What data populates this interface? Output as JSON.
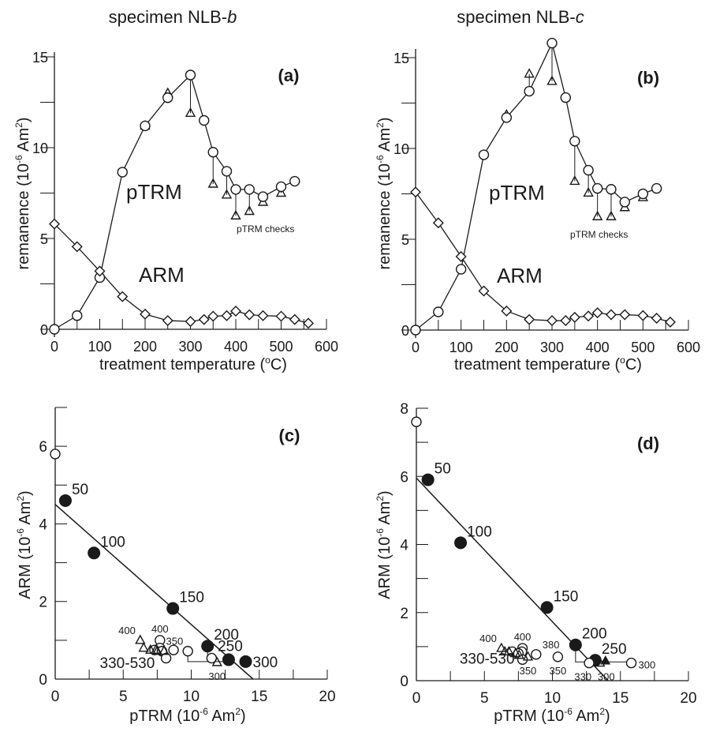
{
  "titles": [
    {
      "text": "specimen NLB-",
      "italic": "b"
    },
    {
      "text": "specimen NLB-",
      "italic": "c"
    }
  ],
  "colors": {
    "ink": "#1a1a1a",
    "background": "#ffffff"
  },
  "chart_data": [
    {
      "type": "line",
      "panel_label": "(a)",
      "xlabel": [
        "treatment temperature (",
        "o",
        "C)"
      ],
      "ylabel": [
        "remanence (10",
        "-6",
        " Am",
        "2",
        ")"
      ],
      "xlim": [
        0,
        600
      ],
      "ylim": [
        0,
        15
      ],
      "xticks": [
        0,
        100,
        200,
        300,
        400,
        500,
        600
      ],
      "yticks": [
        0,
        5,
        10,
        15
      ],
      "grid": false,
      "series": [
        {
          "name": "pTRM",
          "marker": "open-circle",
          "x": [
            0,
            50,
            100,
            150,
            200,
            250,
            300,
            330,
            350,
            380,
            400,
            430,
            460,
            500,
            530
          ],
          "y": [
            0,
            0.75,
            2.85,
            8.65,
            11.2,
            12.75,
            14.0,
            11.5,
            9.75,
            8.7,
            7.7,
            7.7,
            7.3,
            7.85,
            8.15
          ]
        },
        {
          "name": "ARM",
          "marker": "open-diamond",
          "x": [
            0,
            50,
            100,
            150,
            200,
            250,
            300,
            330,
            350,
            380,
            400,
            430,
            460,
            500,
            530,
            560
          ],
          "y": [
            5.8,
            4.55,
            3.2,
            1.8,
            0.83,
            0.48,
            0.43,
            0.54,
            0.72,
            0.75,
            1.0,
            0.8,
            0.75,
            0.72,
            0.54,
            0.33
          ]
        },
        {
          "name": "pTRM checks",
          "marker": "open-triangle",
          "x": [
            200,
            250,
            300,
            350,
            380,
            400,
            430,
            460,
            500
          ],
          "y": [
            11.2,
            13.0,
            11.9,
            8.0,
            7.4,
            6.25,
            6.5,
            7.0,
            7.5
          ]
        }
      ]
    },
    {
      "type": "line",
      "panel_label": "(b)",
      "xlabel": [
        "treatment temperature (",
        "o",
        "C)"
      ],
      "ylabel": [
        "remanence (10",
        "-6",
        " Am",
        "2",
        ")"
      ],
      "xlim": [
        0,
        600
      ],
      "ylim": [
        0,
        15
      ],
      "xticks": [
        0,
        100,
        200,
        300,
        400,
        500,
        600
      ],
      "yticks": [
        0,
        5,
        10,
        15
      ],
      "grid": false,
      "series": [
        {
          "name": "pTRM",
          "marker": "open-circle",
          "x": [
            0,
            50,
            100,
            150,
            200,
            250,
            300,
            330,
            350,
            380,
            400,
            430,
            460,
            500,
            530
          ],
          "y": [
            0,
            1.0,
            3.35,
            9.65,
            11.7,
            13.15,
            15.8,
            12.8,
            10.4,
            8.8,
            7.8,
            7.75,
            7.05,
            7.5,
            7.8
          ]
        },
        {
          "name": "ARM",
          "marker": "open-diamond",
          "x": [
            0,
            50,
            100,
            150,
            200,
            250,
            300,
            330,
            350,
            380,
            400,
            430,
            460,
            500,
            530,
            560
          ],
          "y": [
            7.6,
            5.9,
            4.05,
            2.15,
            1.05,
            0.58,
            0.52,
            0.52,
            0.7,
            0.77,
            0.95,
            0.85,
            0.85,
            0.8,
            0.65,
            0.44
          ]
        },
        {
          "name": "pTRM checks",
          "marker": "open-triangle",
          "x": [
            200,
            250,
            300,
            350,
            380,
            400,
            430,
            460,
            500
          ],
          "y": [
            11.85,
            14.1,
            13.7,
            8.2,
            7.55,
            6.25,
            6.25,
            6.75,
            7.3
          ]
        }
      ]
    },
    {
      "type": "scatter",
      "panel_label": "(c)",
      "xlabel": [
        "pTRM (10",
        "-6",
        " Am",
        "2",
        ")"
      ],
      "ylabel": [
        "ARM (10",
        "-6",
        " Am",
        "2",
        ")"
      ],
      "xlim": [
        0,
        20
      ],
      "ylim": [
        0,
        7
      ],
      "xticks": [
        0,
        5,
        10,
        15,
        20
      ],
      "yticks": [
        0,
        2,
        4,
        6
      ],
      "grid": false,
      "fit_line": [
        [
          0,
          4.5
        ],
        [
          14.55,
          0
        ]
      ],
      "connectors": [
        [
          [
            9.75,
            0.72
          ],
          [
            9.75,
            0.45
          ],
          [
            12.75,
            0.45
          ]
        ],
        [
          [
            11.2,
            0.85
          ],
          [
            11.2,
            0.5
          ]
        ]
      ],
      "group_label": {
        "text": "330-530",
        "x": 5.3,
        "y": 0.28
      },
      "series": [
        {
          "marker": "filled-circle",
          "points": [
            {
              "x": 0.75,
              "y": 4.6,
              "label": "50"
            },
            {
              "x": 2.85,
              "y": 3.25,
              "label": "100"
            },
            {
              "x": 8.65,
              "y": 1.82,
              "label": "150"
            },
            {
              "x": 11.2,
              "y": 0.85,
              "label": "200"
            },
            {
              "x": 12.75,
              "y": 0.5,
              "label": "250"
            },
            {
              "x": 14.0,
              "y": 0.45,
              "label": "300"
            }
          ]
        },
        {
          "marker": "open-circle",
          "points": [
            {
              "x": 0,
              "y": 5.8
            },
            {
              "x": 11.5,
              "y": 0.54
            },
            {
              "x": 9.75,
              "y": 0.72,
              "label": "350",
              "label_pos": "upper-left"
            },
            {
              "x": 8.7,
              "y": 0.75
            },
            {
              "x": 7.7,
              "y": 1.0,
              "label": "400",
              "label_pos": "above"
            },
            {
              "x": 7.7,
              "y": 0.8
            },
            {
              "x": 7.3,
              "y": 0.75
            },
            {
              "x": 7.85,
              "y": 0.72
            },
            {
              "x": 8.15,
              "y": 0.54
            }
          ]
        },
        {
          "marker": "open-triangle",
          "points": [
            {
              "x": 11.9,
              "y": 0.43,
              "label": "300",
              "label_pos": "below"
            },
            {
              "x": 6.25,
              "y": 1.0,
              "label": "400",
              "label_pos": "upper-left"
            },
            {
              "x": 6.5,
              "y": 0.8
            },
            {
              "x": 7.0,
              "y": 0.75
            },
            {
              "x": 7.5,
              "y": 0.72
            },
            {
              "x": 8.0,
              "y": 0.72
            },
            {
              "x": 7.4,
              "y": 0.75
            }
          ]
        }
      ]
    },
    {
      "type": "scatter",
      "panel_label": "(d)",
      "xlabel": [
        "pTRM (10",
        "-6",
        " Am",
        "2",
        ")"
      ],
      "ylabel": [
        "ARM (10",
        "-6",
        " Am",
        "2",
        ")"
      ],
      "xlim": [
        0,
        20
      ],
      "ylim": [
        0,
        8
      ],
      "xticks": [
        0,
        5,
        10,
        15,
        20
      ],
      "yticks": [
        0,
        2,
        4,
        6,
        8
      ],
      "grid": false,
      "fit_line": [
        [
          0,
          5.95
        ],
        [
          14.1,
          0
        ]
      ],
      "connectors": [
        [
          [
            11.7,
            1.05
          ],
          [
            11.7,
            0.55
          ],
          [
            15.8,
            0.55
          ]
        ]
      ],
      "group_label": {
        "text": "330-530",
        "x": 5.2,
        "y": 0.5
      },
      "series": [
        {
          "marker": "filled-circle",
          "points": [
            {
              "x": 0.85,
              "y": 5.9,
              "label": "50"
            },
            {
              "x": 3.25,
              "y": 4.05,
              "label": "100"
            },
            {
              "x": 9.6,
              "y": 2.15,
              "label": "150"
            },
            {
              "x": 11.7,
              "y": 1.05,
              "label": "200"
            },
            {
              "x": 13.15,
              "y": 0.6,
              "label": "250"
            }
          ]
        },
        {
          "marker": "filled-triangle",
          "points": [
            {
              "x": 13.9,
              "y": 0.58
            }
          ]
        },
        {
          "marker": "open-circle",
          "points": [
            {
              "x": 0,
              "y": 7.6
            },
            {
              "x": 15.8,
              "y": 0.52,
              "label": "300",
              "label_pos": "right"
            },
            {
              "x": 12.7,
              "y": 0.52,
              "label": "330",
              "label_pos": "below"
            },
            {
              "x": 10.4,
              "y": 0.7,
              "label": "350",
              "label_pos": "below"
            },
            {
              "x": 8.8,
              "y": 0.77,
              "label": "380",
              "label_pos": "upper-right"
            },
            {
              "x": 7.8,
              "y": 0.95,
              "label": "400",
              "label_pos": "above"
            },
            {
              "x": 7.75,
              "y": 0.85
            },
            {
              "x": 7.05,
              "y": 0.85
            },
            {
              "x": 7.5,
              "y": 0.8
            },
            {
              "x": 7.8,
              "y": 0.62
            }
          ]
        },
        {
          "marker": "open-triangle",
          "points": [
            {
              "x": 6.25,
              "y": 0.95,
              "label": "400",
              "label_pos": "upper-left"
            },
            {
              "x": 6.5,
              "y": 0.85
            },
            {
              "x": 6.8,
              "y": 0.85
            },
            {
              "x": 7.3,
              "y": 0.8
            },
            {
              "x": 7.55,
              "y": 0.75
            },
            {
              "x": 8.2,
              "y": 0.7,
              "label": "350",
              "label_pos": "below"
            },
            {
              "x": 13.5,
              "y": 0.52,
              "label": "300",
              "label_pos": "below"
            }
          ]
        }
      ]
    }
  ]
}
